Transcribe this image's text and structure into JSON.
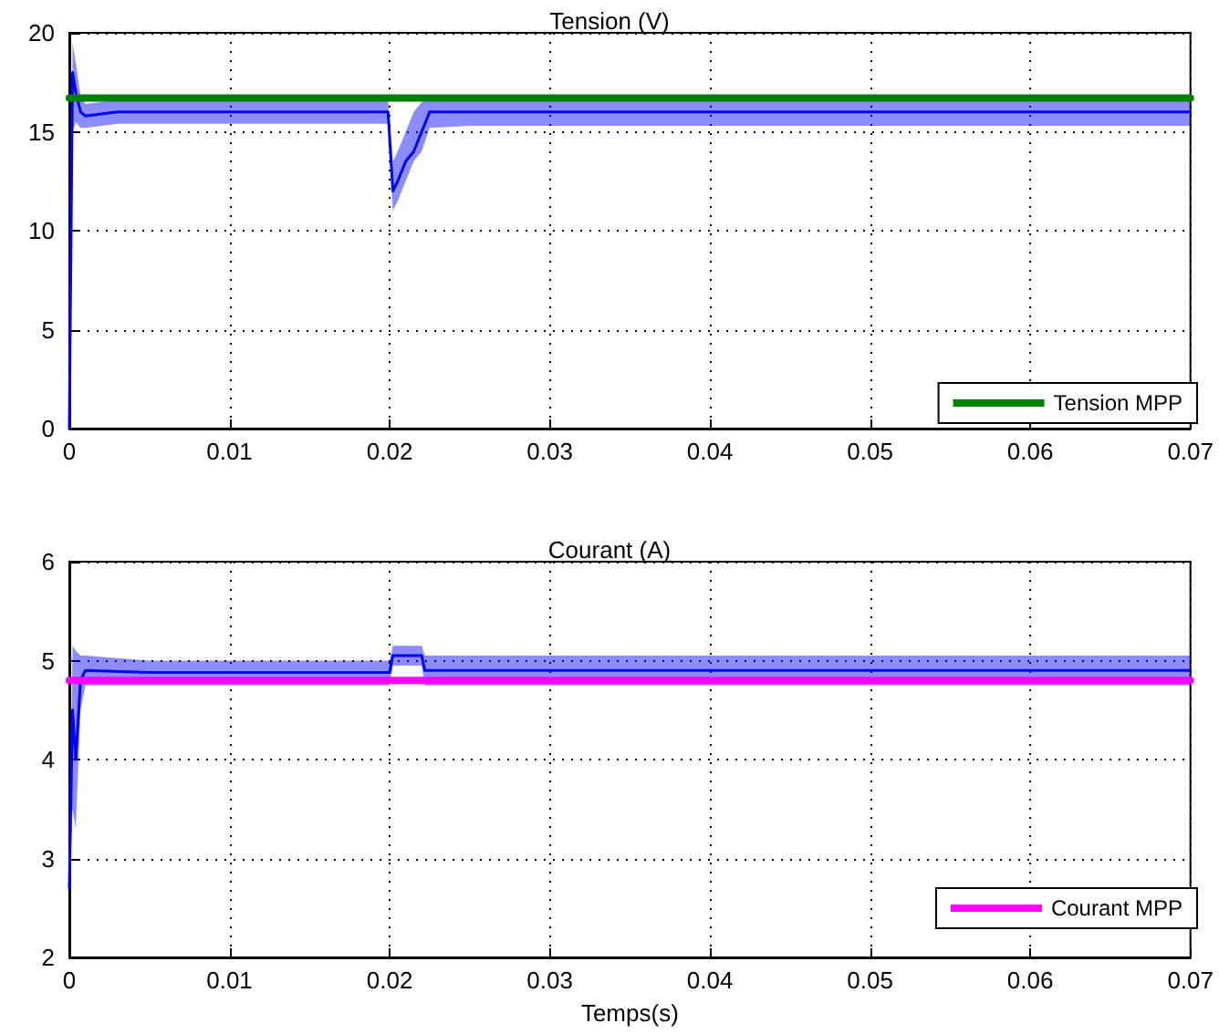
{
  "chart_data": [
    {
      "type": "line",
      "title": "Tension (V)",
      "xlim": [
        0,
        0.07
      ],
      "xticks": [
        0,
        0.01,
        0.02,
        0.03,
        0.04,
        0.05,
        0.06,
        0.07
      ],
      "ylim": [
        0,
        20
      ],
      "yticks": [
        0,
        5,
        10,
        15,
        20
      ],
      "grid": true,
      "legend": "bottom right",
      "marker": "none",
      "series": [
        {
          "color": "#0000ff",
          "x": [
            0,
            0.0002,
            0.0004,
            0.0007,
            0.001,
            0.003,
            0.006,
            0.01,
            0.014,
            0.018,
            0.0199,
            0.0202,
            0.0205,
            0.021,
            0.0215,
            0.022,
            0.0225,
            0.025,
            0.03,
            0.035,
            0.04,
            0.045,
            0.05,
            0.055,
            0.06,
            0.065,
            0.07
          ],
          "values": [
            0,
            18,
            17,
            16,
            15.8,
            16,
            16,
            16,
            16,
            16,
            16,
            12,
            12.5,
            13.5,
            14,
            15,
            16,
            16,
            16,
            16,
            16,
            16,
            16,
            16,
            16,
            16,
            16
          ],
          "lower": [
            0,
            15,
            15.5,
            15.2,
            15.2,
            15.4,
            15.4,
            15.4,
            15.4,
            15.4,
            15.4,
            11,
            11.5,
            12.5,
            13.5,
            14,
            15.2,
            15.3,
            15.3,
            15.3,
            15.3,
            15.3,
            15.3,
            15.3,
            15.3,
            15.3,
            15.3
          ],
          "upper": [
            0,
            19.5,
            18.5,
            16.8,
            16.4,
            16.6,
            16.6,
            16.6,
            16.6,
            16.6,
            16.6,
            13.5,
            14,
            15,
            16,
            16.5,
            16.7,
            16.7,
            16.7,
            16.7,
            16.7,
            16.7,
            16.7,
            16.7,
            16.7,
            16.7,
            16.7
          ]
        },
        {
          "name": "Tension MPP",
          "color": "#008000",
          "x": [
            0,
            0.07
          ],
          "values": [
            16.7,
            16.7
          ]
        }
      ]
    },
    {
      "type": "line",
      "title": "Courant (A)",
      "xlabel": "Temps(s)",
      "xlim": [
        0,
        0.07
      ],
      "xticks": [
        0,
        0.01,
        0.02,
        0.03,
        0.04,
        0.05,
        0.06,
        0.07
      ],
      "ylim": [
        2,
        6
      ],
      "yticks": [
        2,
        3,
        4,
        5,
        6
      ],
      "grid": true,
      "legend": "bottom right",
      "marker": "none",
      "series": [
        {
          "color": "#0000ff",
          "x": [
            0,
            0.0002,
            0.0004,
            0.0007,
            0.001,
            0.005,
            0.01,
            0.015,
            0.02,
            0.0202,
            0.022,
            0.0222,
            0.025,
            0.03,
            0.035,
            0.04,
            0.045,
            0.05,
            0.055,
            0.06,
            0.065,
            0.07
          ],
          "values": [
            2.7,
            4.5,
            4,
            4.8,
            4.9,
            4.88,
            4.88,
            4.88,
            4.88,
            5.05,
            5.05,
            4.9,
            4.9,
            4.9,
            4.9,
            4.9,
            4.9,
            4.9,
            4.9,
            4.9,
            4.9,
            4.9
          ],
          "lower": [
            2.7,
            3.5,
            3.3,
            4.5,
            4.75,
            4.75,
            4.75,
            4.75,
            4.75,
            4.95,
            4.95,
            4.75,
            4.75,
            4.75,
            4.75,
            4.75,
            4.75,
            4.75,
            4.75,
            4.75,
            4.75,
            4.75
          ],
          "upper": [
            2.7,
            5.15,
            5.1,
            5.05,
            5.05,
            5,
            5,
            5,
            5,
            5.15,
            5.15,
            5.05,
            5.05,
            5.05,
            5.05,
            5.05,
            5.05,
            5.05,
            5.05,
            5.05,
            5.05,
            5.05
          ]
        },
        {
          "name": "Courant MPP",
          "color": "#ff00ff",
          "x": [
            0,
            0.07
          ],
          "values": [
            4.8,
            4.8
          ]
        }
      ]
    }
  ]
}
